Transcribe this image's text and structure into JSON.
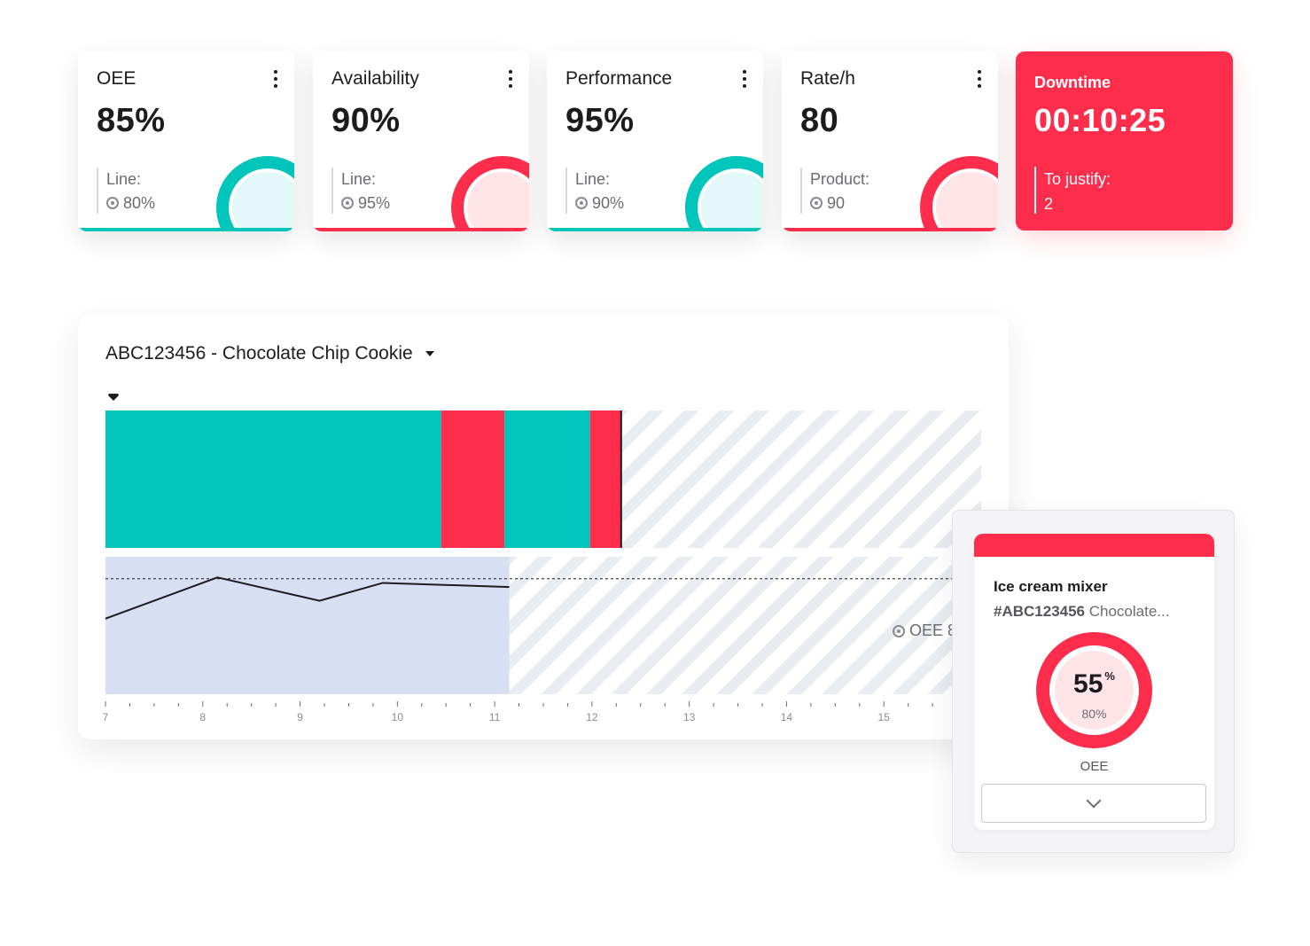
{
  "kpis": [
    {
      "title": "OEE",
      "value": "85%",
      "sub_label": "Line:",
      "sub_target": "80%",
      "status": "teal"
    },
    {
      "title": "Availability",
      "value": "90%",
      "sub_label": "Line:",
      "sub_target": "95%",
      "status": "red"
    },
    {
      "title": "Performance",
      "value": "95%",
      "sub_label": "Line:",
      "sub_target": "90%",
      "status": "teal"
    },
    {
      "title": "Rate/h",
      "value": "80",
      "sub_label": "Product:",
      "sub_target": "90",
      "status": "red"
    }
  ],
  "downtime": {
    "title": "Downtime",
    "value": "00:10:25",
    "sub_label": "To justify:",
    "sub_value": "2"
  },
  "colors": {
    "teal": "#00c5bb",
    "red": "#ff2d4c",
    "light_blue": "#d6e0f2",
    "stripe": "#e9ecf3"
  },
  "production": {
    "product_selector": "ABC123456 - Chocolate Chip Cookie",
    "target_label": "OEE 8"
  },
  "chart_data": {
    "type": "line",
    "x_ticks": [
      "7",
      "8",
      "9",
      "10",
      "11",
      "12",
      "13",
      "14",
      "15"
    ],
    "state_segments": [
      {
        "state": "running",
        "start": 7.0,
        "end": 10.45
      },
      {
        "state": "stopped",
        "start": 10.45,
        "end": 11.1
      },
      {
        "state": "running",
        "start": 11.1,
        "end": 11.98
      },
      {
        "state": "stopped",
        "start": 11.98,
        "end": 12.3
      }
    ],
    "current_time": 12.3,
    "oee_series": {
      "x": [
        7.0,
        8.15,
        9.2,
        9.85,
        11.15
      ],
      "y": [
        0.55,
        0.85,
        0.68,
        0.81,
        0.78
      ]
    },
    "oee_target": 0.84,
    "oee_window_end": 11.15
  },
  "popup": {
    "machine": "Ice cream mixer",
    "ref_code": "#ABC123456",
    "ref_name": "Chocolate...",
    "oee_value": "55",
    "oee_unit": "%",
    "oee_target": "80%",
    "oee_label": "OEE"
  }
}
